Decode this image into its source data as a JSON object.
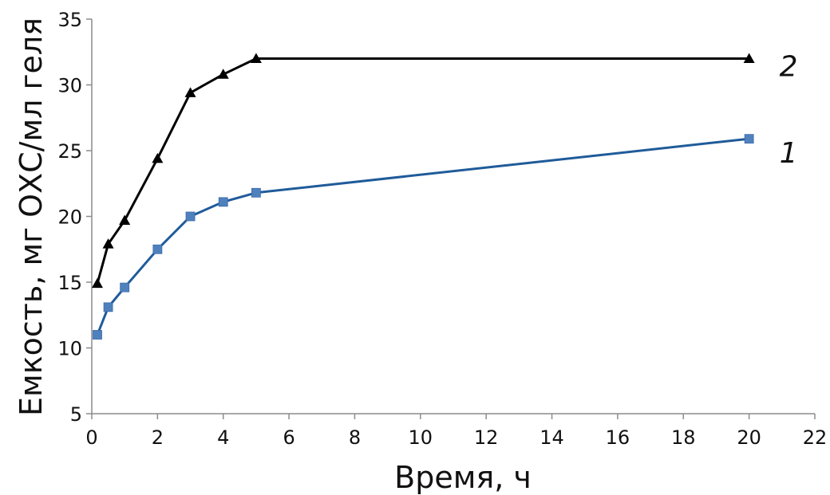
{
  "chart_data": {
    "type": "line",
    "title": "",
    "xlabel": "Время, ч",
    "ylabel": "Емкость, мг ОХС/мл геля",
    "xlim": [
      0,
      22
    ],
    "ylim": [
      5,
      35
    ],
    "x_ticks": [
      "0",
      "2",
      "4",
      "6",
      "8",
      "10",
      "12",
      "14",
      "16",
      "18",
      "20",
      "22"
    ],
    "y_ticks": [
      "5",
      "10",
      "15",
      "20",
      "25",
      "30",
      "35"
    ],
    "grid": false,
    "legend": "none",
    "series": [
      {
        "name": "1",
        "color": "#1f5b9a",
        "marker_color": "#4f81bd",
        "marker": "square",
        "x": [
          0.17,
          0.5,
          1,
          2,
          3,
          4,
          5,
          20
        ],
        "y": [
          11.0,
          13.1,
          14.6,
          17.5,
          20.0,
          21.1,
          21.8,
          25.9
        ]
      },
      {
        "name": "2",
        "color": "#000000",
        "marker_color": "#000000",
        "marker": "triangle",
        "x": [
          0.17,
          0.5,
          1,
          2,
          3,
          4,
          5,
          20
        ],
        "y": [
          14.9,
          17.9,
          19.7,
          24.4,
          29.4,
          30.8,
          32.0,
          32.0
        ]
      }
    ]
  }
}
